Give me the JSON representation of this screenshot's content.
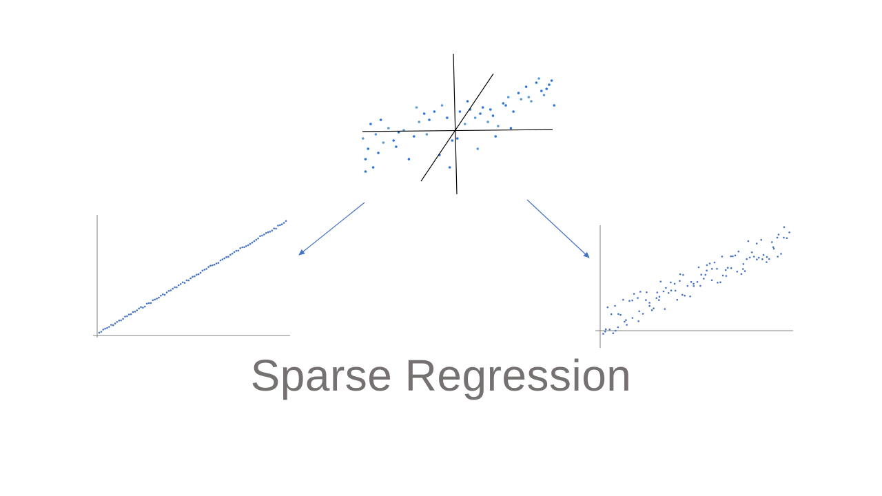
{
  "slide": {
    "title": "Sparse Regression"
  },
  "colors": {
    "background": "#ffffff",
    "title": "#767171",
    "pca_axes": "#000000",
    "pca_points_primary": "#2e75d6",
    "pca_points_secondary": "#5b9bd5",
    "plot_points": "#4472c4",
    "plot_axes": "#595959",
    "arrows": "#4472c4"
  },
  "chart_data": [
    {
      "type": "scatter",
      "title": "",
      "xlabel": "",
      "ylabel": "",
      "grid": false,
      "legend": false,
      "description_values": "two-variable point cloud with two rotated axes through its mean",
      "x": [
        -3.6,
        -3.4,
        -3.5,
        -3.1,
        -3.2,
        -3.0,
        -2.8,
        -3.3,
        -3.5,
        -2.6,
        -2.2,
        -2.4,
        -2.0,
        -2.3,
        -1.6,
        -1.4,
        -1.8,
        -1.2,
        -1.5,
        -1.0,
        -0.8,
        -1.1,
        -0.6,
        -0.3,
        -0.5,
        -0.1,
        0.2,
        0.4,
        0.1,
        0.6,
        0.8,
        0.5,
        1.0,
        1.3,
        1.1,
        1.5,
        1.7,
        1.9,
        1.4,
        2.1,
        2.3,
        2.0,
        2.6,
        2.8,
        2.5,
        3.0,
        3.2,
        3.4,
        2.9,
        3.6,
        3.8,
        3.5,
        3.9,
        3.7,
        3.3,
        -2.9,
        -0.2,
        0.9,
        2.2,
        1.6
      ],
      "y": [
        -0.4,
        -0.9,
        -1.4,
        -0.2,
        -1.8,
        -1.1,
        -0.6,
        0.3,
        -2.0,
        0.1,
        -0.1,
        -0.5,
        0.0,
        -0.8,
        -0.3,
        0.4,
        -1.4,
        0.8,
        1.1,
        0.5,
        0.9,
        -0.2,
        -1.2,
        0.6,
        1.2,
        -0.5,
        0.9,
        0.3,
        -0.4,
        1.0,
        0.6,
        1.4,
        0.8,
        0.4,
        1.1,
        0.7,
        0.2,
        1.3,
        1.0,
        1.6,
        0.9,
        1.2,
        1.5,
        2.1,
        1.8,
        1.4,
        2.3,
        1.9,
        1.6,
        2.0,
        2.4,
        1.7,
        1.2,
        2.2,
        2.5,
        0.5,
        -1.8,
        -0.9,
        0.1,
        -0.3
      ]
    },
    {
      "type": "scatter",
      "title": "",
      "xlabel": "",
      "ylabel": "",
      "grid": false,
      "legend": false,
      "trend": "near-perfect linear relationship (low noise)",
      "xlim": [
        0,
        100
      ],
      "ylim": [
        0,
        100
      ]
    },
    {
      "type": "scatter",
      "title": "",
      "xlabel": "",
      "ylabel": "",
      "grid": false,
      "legend": false,
      "trend": "noisy linear relationship (high noise)",
      "xlim": [
        0,
        100
      ],
      "ylim": [
        -10,
        100
      ]
    }
  ]
}
